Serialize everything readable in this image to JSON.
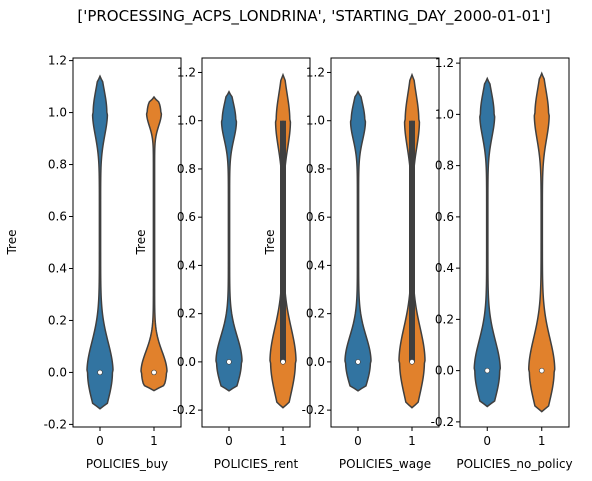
{
  "suptitle": "['PROCESSING_ACPS_LONDRINA', 'STARTING_DAY_2000-01-01']",
  "colors": {
    "series_0": "#3274a1",
    "series_1": "#e1812c",
    "outline": "#3f3f3f",
    "median": "#ffffff"
  },
  "chart_data": [
    {
      "type": "violin",
      "xlabel": "POLICIES_buy",
      "ylabel": "Tree",
      "categories": [
        "0",
        "1"
      ],
      "ylim": [
        -0.21,
        1.21
      ],
      "yticks": [
        "-0.2",
        "0.0",
        "0.2",
        "0.4",
        "0.6",
        "0.8",
        "1.0",
        "1.2"
      ],
      "series": [
        {
          "category": "0",
          "median": 0.0,
          "q1": 0.0,
          "q3": 0.0,
          "whisker_low": 0.0,
          "whisker_high": 0.0,
          "range": [
            -0.14,
            1.14
          ],
          "modes": [
            0.0,
            1.0
          ]
        },
        {
          "category": "1",
          "median": 0.0,
          "q1": 0.0,
          "q3": 0.0,
          "whisker_low": 0.0,
          "whisker_high": 0.0,
          "range": [
            -0.07,
            1.06
          ],
          "modes": [
            0.0,
            1.0
          ]
        }
      ],
      "grid": false
    },
    {
      "type": "violin",
      "xlabel": "POLICIES_rent",
      "ylabel": "Tree",
      "categories": [
        "0",
        "1"
      ],
      "ylim": [
        -0.27,
        1.26
      ],
      "yticks": [
        "-0.2",
        "0.0",
        "0.2",
        "0.4",
        "0.6",
        "0.8",
        "1.0",
        "1.2"
      ],
      "series": [
        {
          "category": "0",
          "median": 0.0,
          "q1": 0.0,
          "q3": 0.0,
          "whisker_low": 0.0,
          "whisker_high": 0.0,
          "range": [
            -0.12,
            1.12
          ],
          "modes": [
            0.0,
            1.0
          ]
        },
        {
          "category": "1",
          "median": 0.0,
          "q1": 0.0,
          "q3": 1.0,
          "whisker_low": 0.0,
          "whisker_high": 1.0,
          "range": [
            -0.19,
            1.19
          ],
          "modes": [
            0.0,
            1.0
          ]
        }
      ],
      "grid": false
    },
    {
      "type": "violin",
      "xlabel": "POLICIES_wage",
      "ylabel": "Tree",
      "categories": [
        "0",
        "1"
      ],
      "ylim": [
        -0.27,
        1.26
      ],
      "yticks": [
        "-0.2",
        "0.0",
        "0.2",
        "0.4",
        "0.6",
        "0.8",
        "1.0",
        "1.2"
      ],
      "series": [
        {
          "category": "0",
          "median": 0.0,
          "q1": 0.0,
          "q3": 0.0,
          "whisker_low": 0.0,
          "whisker_high": 0.0,
          "range": [
            -0.12,
            1.12
          ],
          "modes": [
            0.0,
            1.0
          ]
        },
        {
          "category": "1",
          "median": 0.0,
          "q1": 0.0,
          "q3": 1.0,
          "whisker_low": 0.0,
          "whisker_high": 1.0,
          "range": [
            -0.19,
            1.19
          ],
          "modes": [
            0.0,
            1.0
          ]
        }
      ],
      "grid": false
    },
    {
      "type": "violin",
      "xlabel": "POLICIES_no_policy",
      "ylabel": "",
      "categories": [
        "0",
        "1"
      ],
      "ylim": [
        -0.22,
        1.22
      ],
      "yticks": [
        "-0.2",
        "0.0",
        "0.2",
        "0.4",
        "0.6",
        "0.8",
        "1.0",
        "1.2"
      ],
      "series": [
        {
          "category": "0",
          "median": 0.0,
          "q1": 0.0,
          "q3": 0.0,
          "whisker_low": 0.0,
          "whisker_high": 0.0,
          "range": [
            -0.14,
            1.14
          ],
          "modes": [
            0.0,
            1.0
          ]
        },
        {
          "category": "1",
          "median": 0.0,
          "q1": 0.0,
          "q3": 0.0,
          "whisker_low": 0.0,
          "whisker_high": 0.0,
          "range": [
            -0.16,
            1.16
          ],
          "modes": [
            0.0,
            1.0
          ]
        }
      ],
      "grid": false
    }
  ]
}
